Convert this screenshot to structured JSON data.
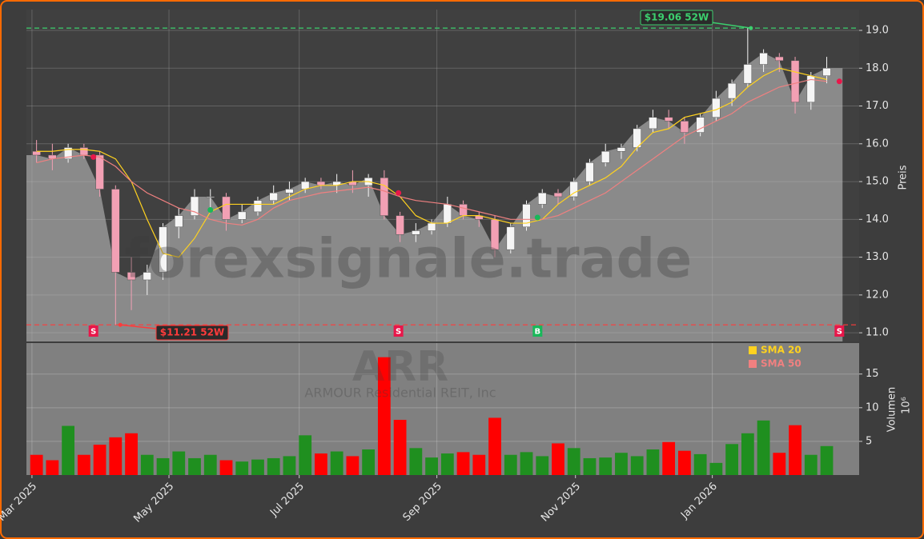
{
  "chart_data": {
    "type": "candlestick",
    "watermark": "forexsignale.trade",
    "ticker": "ARR",
    "company": "ARMOUR Residential REIT, Inc",
    "y_label": "Preis",
    "volume_label": "Volumen",
    "volume_exponent": "10⁶",
    "xlim": [
      -0.64,
      52.05
    ],
    "xticks": [
      {
        "value": -0.29,
        "label": "Mar 2025"
      },
      {
        "value": 8.38,
        "label": "May 2025"
      },
      {
        "value": 16.62,
        "label": "Jul 2025"
      },
      {
        "value": 25.33,
        "label": "Sep 2025"
      },
      {
        "value": 34.1,
        "label": "Nov 2025"
      },
      {
        "value": 42.76,
        "label": "Jan 2026"
      }
    ],
    "ylim": [
      10.77,
      19.55
    ],
    "yticks": [
      {
        "value": 11,
        "label": "11.0"
      },
      {
        "value": 12,
        "label": "12.0"
      },
      {
        "value": 13,
        "label": "13.0"
      },
      {
        "value": 14,
        "label": "14.0"
      },
      {
        "value": 15,
        "label": "15.0"
      },
      {
        "value": 16,
        "label": "16.0"
      },
      {
        "value": 17,
        "label": "17.0"
      },
      {
        "value": 18,
        "label": "18.0"
      },
      {
        "value": 19,
        "label": "19.0"
      }
    ],
    "volume_ylim": [
      0,
      19.6
    ],
    "volume_yticks": [
      5,
      10,
      15
    ],
    "grid": true,
    "legend": "upper right",
    "up_color": "#f5f5f5",
    "down_color": "#f2a0b4",
    "volume_up_color": "#1f8f1f",
    "volume_down_color": "#ff0000",
    "area_color": "#8a8a8a",
    "open": [
      15.8,
      15.7,
      15.6,
      15.9,
      15.7,
      14.8,
      12.6,
      12.4,
      12.6,
      13.8,
      14.1,
      14.6,
      14.6,
      14.0,
      14.2,
      14.5,
      14.7,
      14.8,
      15.0,
      14.9,
      15.0,
      14.9,
      15.1,
      14.1,
      13.6,
      13.7,
      13.9,
      14.4,
      14.1,
      14.0,
      13.2,
      13.8,
      14.4,
      14.7,
      14.6,
      15.0,
      15.5,
      15.8,
      15.9,
      16.4,
      16.7,
      16.6,
      16.3,
      16.7,
      17.2,
      17.6,
      18.1,
      18.3,
      18.2,
      17.1,
      17.8
    ],
    "high": [
      16.1,
      16.0,
      16.0,
      16.0,
      15.8,
      14.9,
      13.0,
      12.8,
      13.9,
      14.3,
      14.8,
      14.8,
      14.7,
      14.4,
      14.6,
      14.9,
      15.0,
      15.1,
      15.1,
      15.2,
      15.3,
      15.2,
      15.3,
      14.2,
      13.9,
      14.0,
      14.6,
      14.5,
      14.2,
      14.1,
      13.9,
      14.5,
      14.8,
      14.8,
      15.1,
      15.6,
      16.0,
      16.0,
      16.5,
      16.9,
      16.9,
      16.7,
      16.8,
      17.4,
      17.7,
      19.06,
      18.5,
      18.4,
      18.3,
      17.9,
      18.3
    ],
    "low": [
      15.5,
      15.3,
      15.5,
      15.6,
      14.6,
      11.21,
      11.6,
      12.0,
      12.4,
      13.5,
      14.0,
      14.3,
      13.7,
      13.9,
      14.1,
      14.4,
      14.5,
      14.7,
      14.8,
      14.7,
      14.7,
      14.6,
      14.0,
      13.4,
      13.4,
      13.6,
      13.8,
      14.0,
      13.8,
      13.0,
      13.1,
      13.7,
      14.3,
      14.4,
      14.5,
      14.9,
      15.4,
      15.6,
      15.8,
      16.3,
      16.4,
      16.0,
      16.2,
      16.6,
      17.0,
      17.5,
      17.9,
      17.9,
      16.8,
      16.9,
      17.6
    ],
    "close": [
      15.7,
      15.6,
      15.9,
      15.7,
      14.8,
      12.6,
      12.4,
      12.6,
      13.8,
      14.1,
      14.6,
      14.6,
      14.0,
      14.2,
      14.5,
      14.7,
      14.8,
      15.0,
      14.9,
      15.0,
      14.9,
      15.1,
      14.1,
      13.6,
      13.7,
      13.9,
      14.4,
      14.1,
      14.0,
      13.2,
      13.8,
      14.4,
      14.7,
      14.6,
      15.0,
      15.5,
      15.8,
      15.9,
      16.4,
      16.7,
      16.6,
      16.3,
      16.7,
      17.2,
      17.6,
      18.1,
      18.4,
      18.2,
      17.1,
      17.8,
      18.0
    ],
    "volume": [
      3.0,
      2.2,
      7.3,
      3.0,
      4.5,
      5.6,
      6.2,
      3.0,
      2.5,
      3.5,
      2.5,
      3.0,
      2.2,
      2.0,
      2.3,
      2.5,
      2.8,
      5.9,
      3.2,
      3.5,
      2.8,
      3.8,
      17.5,
      8.2,
      4.0,
      2.6,
      3.2,
      3.4,
      3.0,
      8.5,
      3.0,
      3.4,
      2.8,
      4.7,
      4.0,
      2.5,
      2.6,
      3.3,
      2.8,
      3.8,
      4.9,
      3.6,
      3.1,
      1.8,
      4.6,
      6.2,
      8.1,
      3.3,
      7.4,
      3.0,
      4.3
    ],
    "series": [
      {
        "name": "SMA 20",
        "color": "#ffd21f",
        "values": [
          15.8,
          15.8,
          15.85,
          15.85,
          15.8,
          15.6,
          15.0,
          14.0,
          13.1,
          13.0,
          13.5,
          14.2,
          14.4,
          14.4,
          14.4,
          14.4,
          14.6,
          14.8,
          14.9,
          14.9,
          15.0,
          15.0,
          14.9,
          14.6,
          14.1,
          13.9,
          13.9,
          14.1,
          14.1,
          14.0,
          13.9,
          13.9,
          14.0,
          14.4,
          14.7,
          14.9,
          15.1,
          15.4,
          15.9,
          16.3,
          16.4,
          16.7,
          16.8,
          16.9,
          17.1,
          17.5,
          17.8,
          18.0,
          17.9,
          17.8,
          17.7
        ]
      },
      {
        "name": "SMA 50",
        "color": "#f08080",
        "values": [
          15.5,
          15.6,
          15.65,
          15.7,
          15.65,
          15.4,
          15.0,
          14.7,
          14.5,
          14.3,
          14.2,
          14.0,
          13.9,
          13.85,
          14.0,
          14.3,
          14.5,
          14.6,
          14.7,
          14.75,
          14.8,
          14.85,
          14.75,
          14.6,
          14.5,
          14.45,
          14.4,
          14.3,
          14.2,
          14.1,
          14.0,
          14.0,
          14.0,
          14.1,
          14.3,
          14.5,
          14.7,
          15.0,
          15.3,
          15.6,
          15.9,
          16.2,
          16.4,
          16.6,
          16.8,
          17.1,
          17.3,
          17.5,
          17.6,
          17.7,
          17.65
        ]
      }
    ],
    "signals": [
      {
        "type": "S",
        "x": 3.6,
        "price": 15.65,
        "color": "#e8174a"
      },
      {
        "type": "B",
        "x": 11.0,
        "price": 14.25,
        "color": "#19b85a"
      },
      {
        "type": "S",
        "x": 22.9,
        "price": 14.7,
        "color": "#e8174a"
      },
      {
        "type": "B",
        "x": 31.7,
        "price": 14.05,
        "color": "#19b85a"
      },
      {
        "type": "S",
        "x": 50.8,
        "price": 17.65,
        "color": "#e8174a"
      }
    ],
    "high_52w": {
      "value": 19.06,
      "x": 45.2,
      "label": "$19.06 52W",
      "color": "#3ccf6e"
    },
    "low_52w": {
      "value": 11.21,
      "x": 5.3,
      "label": "$11.21 52W",
      "color": "#ff3b3b"
    }
  }
}
